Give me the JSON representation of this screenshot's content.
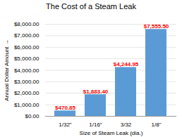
{
  "chart_data": {
    "type": "bar",
    "title": "The Cost of a Steam Leak",
    "xlabel": "Size of Steam Leak (dia.)",
    "ylabel": "Annual Dollar Amount",
    "categories": [
      "1/32\"",
      "1/16\"",
      "3/32",
      "1/8\""
    ],
    "values": [
      470.85,
      1883.4,
      4244.95,
      7555.5
    ],
    "value_labels": [
      "$470.85",
      "$1,883.40",
      "$4,244.95",
      "$7,555.50"
    ],
    "data_labels": true,
    "color": "#5B9BD5",
    "ylim": [
      0,
      8000
    ],
    "yticks": [
      {
        "value": 0,
        "label": "$0.00"
      },
      {
        "value": 1000,
        "label": "$1,000.00"
      },
      {
        "value": 2000,
        "label": "$2,000.00"
      },
      {
        "value": 3000,
        "label": "$3,000.00"
      },
      {
        "value": 4000,
        "label": "$4,000.00"
      },
      {
        "value": 5000,
        "label": "$5,000.00"
      },
      {
        "value": 6000,
        "label": "$6,000.00"
      },
      {
        "value": 7000,
        "label": "$7,000.00"
      },
      {
        "value": 8000,
        "label": "$8,000.00"
      }
    ],
    "grid": true
  }
}
